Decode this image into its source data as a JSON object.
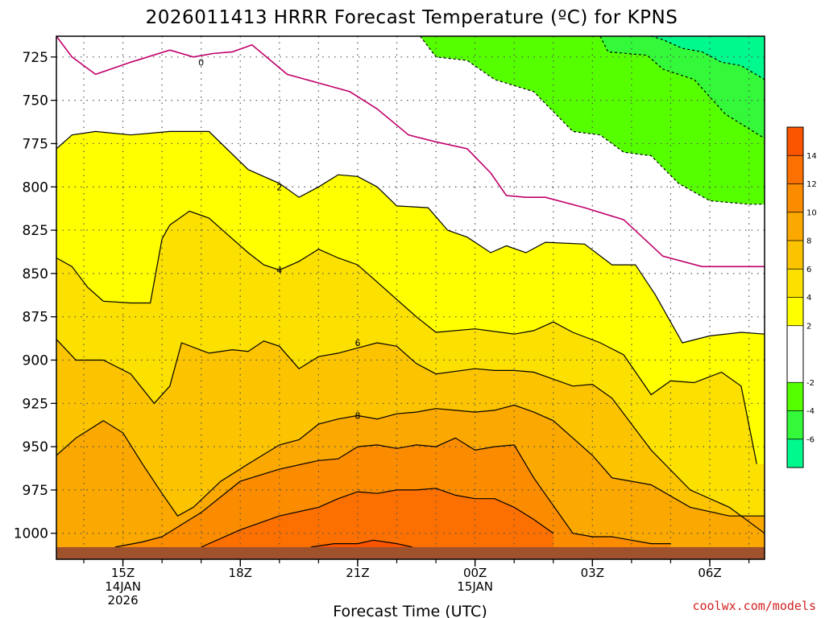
{
  "chart_data": {
    "type": "heatmap",
    "title": "2026011413 HRRR Forecast Temperature (ºC) for KPNS",
    "xlabel": "Forecast Time (UTC)",
    "ylabel": "",
    "credit": "coolwx.com/models",
    "x_hours": [
      0,
      1,
      2,
      3,
      4,
      5,
      6,
      7,
      8,
      9,
      10,
      11,
      12,
      13,
      14,
      15,
      16,
      17,
      18
    ],
    "xlim": [
      -0.7,
      17.4
    ],
    "y_levels": [
      725,
      750,
      775,
      800,
      825,
      850,
      875,
      900,
      925,
      950,
      975,
      1000
    ],
    "ylim": [
      713,
      1015
    ],
    "x_ticks": [
      {
        "hour": 1,
        "lines": [
          "15Z",
          "14JAN",
          "2026"
        ]
      },
      {
        "hour": 4,
        "lines": [
          "18Z"
        ]
      },
      {
        "hour": 7,
        "lines": [
          "21Z"
        ]
      },
      {
        "hour": 10,
        "lines": [
          "00Z",
          "15JAN"
        ]
      },
      {
        "hour": 13,
        "lines": [
          "03Z"
        ]
      },
      {
        "hour": 16,
        "lines": [
          "06Z"
        ]
      }
    ],
    "contour_labels": [
      {
        "text": "0",
        "hour": 3.0,
        "level": 728
      },
      {
        "text": "2",
        "hour": 5.0,
        "level": 800
      },
      {
        "text": "4",
        "hour": 5.0,
        "level": 848
      },
      {
        "text": "6",
        "hour": 7.0,
        "level": 890
      },
      {
        "text": "8",
        "hour": 7.0,
        "level": 932
      }
    ],
    "isotherms": [
      {
        "temp": -6,
        "hours": [
          14.5,
          14.8,
          15.3,
          15.8,
          16.3,
          16.8,
          17.4
        ],
        "levels": [
          713,
          715,
          720,
          722,
          728,
          730,
          738
        ]
      },
      {
        "temp": -4,
        "hours": [
          13.2,
          13.4,
          14.4,
          14.8,
          15.6,
          16.4,
          17.4
        ],
        "levels": [
          713,
          722,
          724,
          732,
          738,
          758,
          772
        ]
      },
      {
        "temp": -2,
        "hours": [
          8.6,
          9.0,
          9.8,
          10.5,
          11.5,
          12.5,
          13.2,
          13.8,
          14.5,
          15.2,
          16.0,
          17.0,
          17.4
        ],
        "levels": [
          713,
          725,
          727,
          738,
          745,
          768,
          770,
          780,
          782,
          798,
          808,
          810,
          810
        ]
      },
      {
        "temp": 0,
        "hours": [
          -0.7,
          -0.3,
          0.3,
          1.2,
          2.2,
          2.8,
          3.3,
          3.8,
          4.3,
          5.2,
          6.0,
          6.8,
          7.5,
          8.3,
          9.0,
          9.8,
          10.4,
          10.8,
          11.3,
          11.8,
          12.8,
          13.8,
          14.8,
          15.8,
          16.8,
          17.4
        ],
        "levels": [
          713,
          725,
          735,
          728,
          721,
          725,
          723,
          722,
          718,
          735,
          740,
          745,
          755,
          770,
          774,
          778,
          792,
          805,
          806,
          806,
          812,
          819,
          840,
          846,
          846,
          846
        ]
      },
      {
        "temp": 2,
        "hours": [
          -0.7,
          -0.3,
          0.3,
          1.2,
          2.2,
          3.2,
          4.2,
          5.0,
          5.5,
          6.0,
          6.5,
          7.0,
          7.5,
          8.0,
          8.8,
          9.3,
          9.8,
          10.4,
          10.8,
          11.3,
          11.8,
          12.8,
          13.5,
          14.1,
          14.6,
          15.3,
          16.0,
          16.8,
          17.4
        ],
        "levels": [
          778,
          770,
          768,
          770,
          768,
          768,
          790,
          798,
          806,
          800,
          793,
          794,
          800,
          811,
          812,
          825,
          829,
          838,
          834,
          838,
          832,
          833,
          845,
          845,
          862,
          890,
          886,
          884,
          885
        ]
      },
      {
        "temp": 4,
        "hours": [
          -0.7,
          -0.3,
          0.1,
          0.5,
          1.2,
          1.7,
          2.0,
          2.2,
          2.7,
          3.2,
          3.8,
          4.2,
          4.6,
          5.0,
          5.5,
          6.0,
          6.5,
          7.0,
          7.5,
          8.0,
          8.5,
          9.0,
          10.0,
          11.0,
          11.5,
          12.0,
          12.5,
          13.2,
          13.8,
          14.5,
          15.0,
          15.6,
          16.3,
          16.8,
          17.2
        ],
        "levels": [
          841,
          846,
          858,
          866,
          867,
          867,
          830,
          822,
          814,
          818,
          830,
          838,
          845,
          848,
          843,
          836,
          841,
          845,
          855,
          865,
          875,
          884,
          882,
          885,
          883,
          878,
          884,
          890,
          897,
          920,
          912,
          913,
          907,
          915,
          960
        ]
      },
      {
        "temp": 6,
        "hours": [
          -0.7,
          -0.2,
          0.5,
          1.2,
          1.8,
          2.2,
          2.5,
          3.2,
          3.8,
          4.2,
          4.6,
          5.0,
          5.5,
          6.0,
          6.5,
          7.0,
          7.5,
          8.0,
          8.5,
          9.0,
          10.0,
          10.5,
          11.0,
          11.5,
          12.0,
          12.5,
          13.0,
          13.5,
          14.5,
          15.5,
          16.5,
          17.4
        ],
        "levels": [
          888,
          900,
          900,
          908,
          925,
          915,
          890,
          896,
          894,
          895,
          889,
          892,
          905,
          898,
          896,
          893,
          890,
          892,
          902,
          908,
          905,
          906,
          906,
          907,
          911,
          915,
          914,
          922,
          952,
          975,
          985,
          1000
        ]
      },
      {
        "temp": 8,
        "hours": [
          -0.7,
          -0.2,
          0.5,
          1.0,
          1.5,
          2.0,
          2.4,
          2.8,
          3.5,
          4.2,
          5.0,
          5.5,
          6.0,
          6.5,
          7.0,
          7.5,
          8.0,
          8.5,
          9.0,
          9.5,
          10.0,
          10.5,
          11.0,
          11.5,
          12.0,
          12.5,
          13.0,
          13.5,
          14.0,
          14.5,
          15.5,
          16.5,
          17.4
        ],
        "levels": [
          955,
          945,
          935,
          942,
          960,
          977,
          990,
          985,
          970,
          960,
          949,
          946,
          937,
          934,
          932,
          934,
          931,
          930,
          928,
          929,
          930,
          929,
          926,
          930,
          935,
          945,
          955,
          968,
          970,
          972,
          985,
          990,
          990
        ]
      },
      {
        "temp": 10,
        "hours": [
          0.8,
          1.5,
          2.0,
          3.0,
          4.0,
          5.0,
          6.0,
          6.5,
          7.0,
          7.5,
          8.0,
          8.5,
          9.0,
          9.5,
          10.0,
          10.5,
          11.0,
          11.5,
          12.5,
          13.0,
          13.5,
          14.0,
          14.5,
          15.0
        ],
        "levels": [
          1008,
          1005,
          1002,
          988,
          970,
          963,
          958,
          957,
          950,
          949,
          951,
          949,
          950,
          945,
          952,
          950,
          949,
          968,
          1000,
          1002,
          1002,
          1004,
          1006,
          1006
        ]
      },
      {
        "temp": 12,
        "hours": [
          3.0,
          4.0,
          5.0,
          6.0,
          6.5,
          7.0,
          7.5,
          8.0,
          8.5,
          9.0,
          9.5,
          10.0,
          10.5,
          11.0,
          11.5,
          12.0
        ],
        "levels": [
          1008,
          998,
          990,
          985,
          980,
          976,
          977,
          975,
          975,
          974,
          978,
          980,
          980,
          985,
          992,
          1000
        ]
      },
      {
        "temp": 14,
        "hours": [
          5.8,
          6.4,
          7.0,
          7.4,
          8.0,
          8.4
        ],
        "levels": [
          1008,
          1006,
          1006,
          1004,
          1006,
          1008
        ]
      }
    ],
    "fill_bands": [
      {
        "range": [
          -8,
          -6
        ],
        "color": "#00f98c"
      },
      {
        "range": [
          -6,
          -4
        ],
        "color": "#33f93a"
      },
      {
        "range": [
          -4,
          -2
        ],
        "color": "#55ff00"
      },
      {
        "range": [
          -2,
          0
        ],
        "color": "#ffffff"
      },
      {
        "range": [
          0,
          2
        ],
        "color": "#ffffff"
      },
      {
        "range": [
          2,
          4
        ],
        "color": "#ffff00"
      },
      {
        "range": [
          4,
          6
        ],
        "color": "#fce000"
      },
      {
        "range": [
          6,
          8
        ],
        "color": "#fcc400"
      },
      {
        "range": [
          8,
          10
        ],
        "color": "#fba800"
      },
      {
        "range": [
          10,
          12
        ],
        "color": "#fb8c00"
      },
      {
        "range": [
          12,
          14
        ],
        "color": "#fb7000"
      },
      {
        "range": [
          14,
          16
        ],
        "color": "#fb5500"
      }
    ],
    "ground_color": "#a0522d",
    "ground_level": 1008,
    "zero_line_color": "#c0006a",
    "colorbar_ticks": [
      "14",
      "12",
      "10",
      "8",
      "6",
      "4",
      "2",
      "-2",
      "-4",
      "-6"
    ],
    "colorbar_tick_values": [
      14,
      12,
      10,
      8,
      6,
      4,
      2,
      -2,
      -4,
      -6
    ],
    "colorbar_range": [
      -8,
      16
    ],
    "colorbar_range_note": "14,12,10 are drawn at band boundaries"
  }
}
